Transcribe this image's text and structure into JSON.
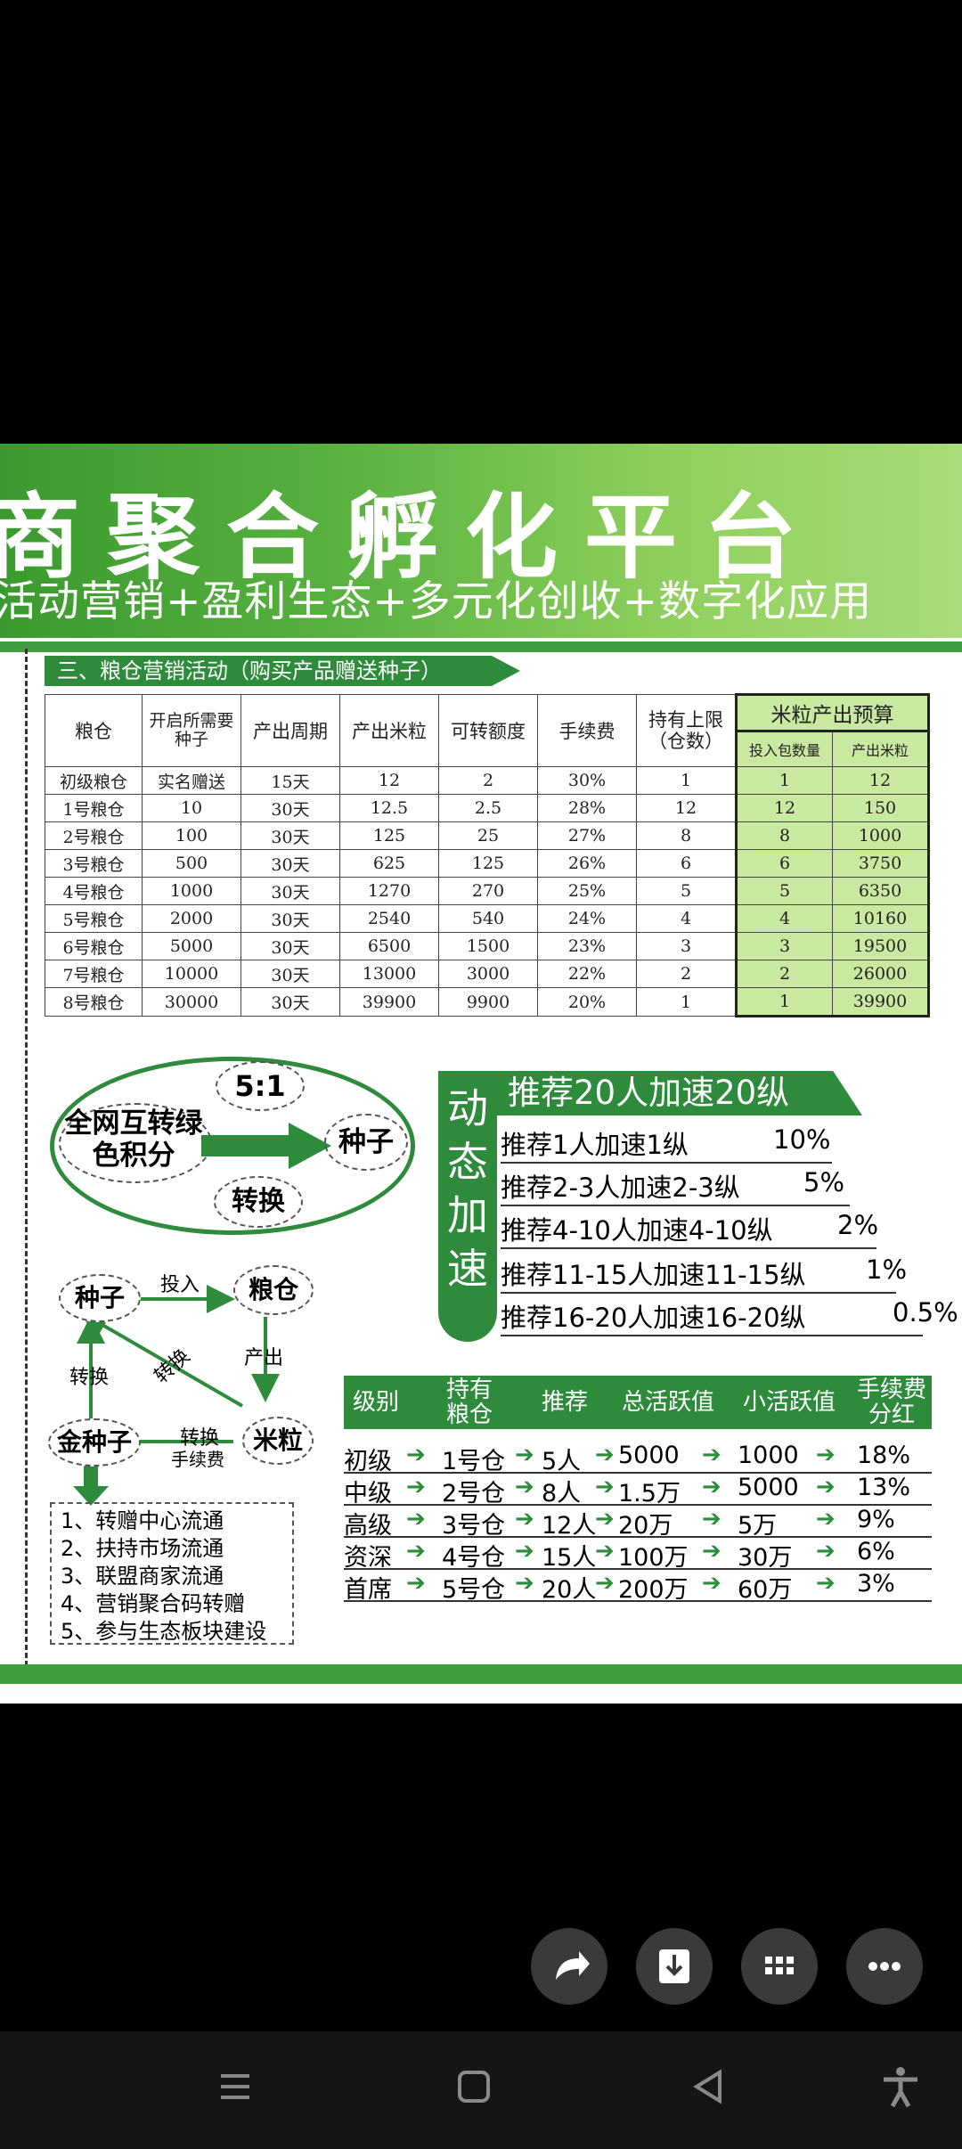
{
  "banner": {
    "title": "商聚合孵化平台",
    "subtitle": "活动营销+盈利生态+多元化创收+数字化应用"
  },
  "section": {
    "title": "三、粮仓营销活动（购买产品赠送种子）"
  },
  "grain_table": {
    "headers": [
      "粮仓",
      "开启所需要种子",
      "产出周期",
      "产出米粒",
      "可转额度",
      "手续费",
      "持有上限（仓数）"
    ],
    "budget_header": "米粒产出预算",
    "budget_cols": [
      "投入包数量",
      "产出米粒"
    ],
    "rows": [
      [
        "初级粮仓",
        "实名赠送",
        "15天",
        "12",
        "2",
        "30%",
        "1",
        "1",
        "12"
      ],
      [
        "1号粮仓",
        "10",
        "30天",
        "12.5",
        "2.5",
        "28%",
        "12",
        "12",
        "150"
      ],
      [
        "2号粮仓",
        "100",
        "30天",
        "125",
        "25",
        "27%",
        "8",
        "8",
        "1000"
      ],
      [
        "3号粮仓",
        "500",
        "30天",
        "625",
        "125",
        "26%",
        "6",
        "6",
        "3750"
      ],
      [
        "4号粮仓",
        "1000",
        "30天",
        "1270",
        "270",
        "25%",
        "5",
        "5",
        "6350"
      ],
      [
        "5号粮仓",
        "2000",
        "30天",
        "2540",
        "540",
        "24%",
        "4",
        "4",
        "10160"
      ],
      [
        "6号粮仓",
        "5000",
        "30天",
        "6500",
        "1500",
        "23%",
        "3",
        "3",
        "19500"
      ],
      [
        "7号粮仓",
        "10000",
        "30天",
        "13000",
        "3000",
        "22%",
        "2",
        "2",
        "26000"
      ],
      [
        "8号粮仓",
        "30000",
        "30天",
        "39900",
        "9900",
        "20%",
        "1",
        "1",
        "39900"
      ]
    ]
  },
  "cycle": {
    "ratio": "5:1",
    "source": "全网互转绿色积分",
    "target": "种子",
    "action": "转换"
  },
  "flow": {
    "seed": "种子",
    "granary": "粮仓",
    "rice": "米粒",
    "gold_seed": "金种子",
    "invest": "投入",
    "output": "产出",
    "convert_diag": "转换",
    "convert_left": "转换",
    "convert_fee_1": "转换",
    "convert_fee_2": "手续费",
    "uses": [
      "1、转赠中心流通",
      "2、扶持市场流通",
      "3、联盟商家流通",
      "4、营销聚合码转赠",
      "5、参与生态板块建设"
    ]
  },
  "dynamic": {
    "vertical": [
      "动",
      "态",
      "加",
      "速"
    ],
    "header": "推荐20人加速20纵",
    "rows": [
      {
        "text": "推荐1人加速1纵",
        "pct": "10%"
      },
      {
        "text": "推荐2-3人加速2-3纵",
        "pct": "5%"
      },
      {
        "text": "推荐4-10人加速4-10纵",
        "pct": "2%"
      },
      {
        "text": "推荐11-15人加速11-15纵",
        "pct": "1%"
      },
      {
        "text": "推荐16-20人加速16-20纵",
        "pct": "0.5%"
      }
    ]
  },
  "levels": {
    "headers": [
      "级别",
      "持有粮仓",
      "推荐",
      "总活跃值",
      "小活跃值",
      "手续费分红"
    ],
    "rows": [
      [
        "初级",
        "1号仓",
        "5人",
        "5000",
        "1000",
        "18%"
      ],
      [
        "中级",
        "2号仓",
        "8人",
        "1.5万",
        "5000",
        "13%"
      ],
      [
        "高级",
        "3号仓",
        "12人",
        "20万",
        "5万",
        "9%"
      ],
      [
        "资深",
        "4号仓",
        "15人",
        "100万",
        "30万",
        "6%"
      ],
      [
        "首席",
        "5号仓",
        "20人",
        "200万",
        "60万",
        "3%"
      ]
    ]
  },
  "actions": {
    "share": "share-icon",
    "save": "download-icon",
    "apps": "grid-icon",
    "more": "more-icon"
  },
  "nav": {
    "menu": "menu-icon",
    "home": "home-icon",
    "back": "back-icon",
    "accessibility": "accessibility-icon"
  },
  "colors": {
    "brand_green": "#2e8b3c",
    "highlight": "#c9e8a0"
  }
}
